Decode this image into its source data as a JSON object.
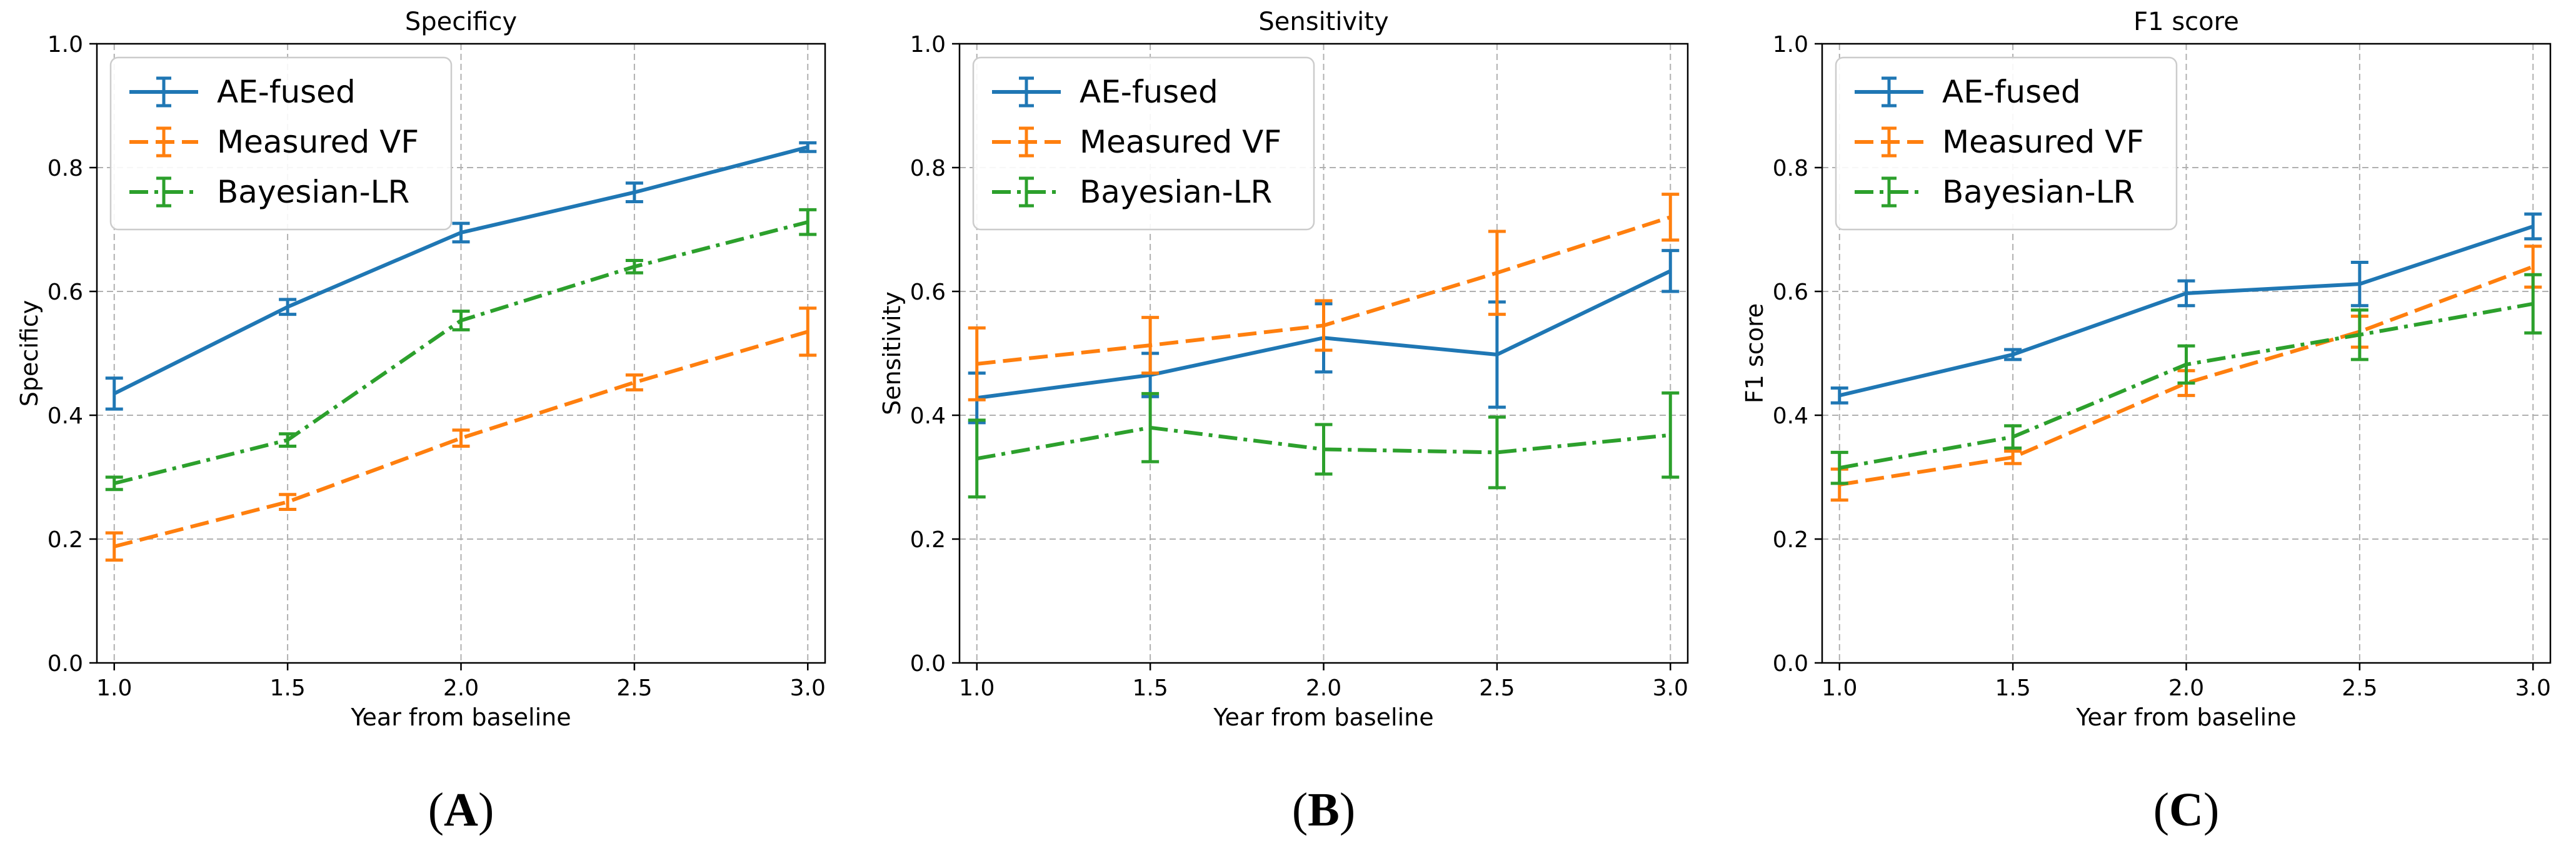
{
  "colors": {
    "ae_fused": "#1f77b4",
    "measured_vf": "#ff7f0e",
    "bayesian_lr": "#2ca02c",
    "grid": "#b0b0b0"
  },
  "chart_data": [
    {
      "type": "line",
      "panel_label": "A",
      "title": "Specificy",
      "xlabel": "Year from baseline",
      "ylabel": "Specificy",
      "x": [
        1.0,
        1.5,
        2.0,
        2.5,
        3.0
      ],
      "xticks": [
        "1.0",
        "1.5",
        "2.0",
        "2.5",
        "3.0"
      ],
      "yticks": [
        "0.0",
        "0.2",
        "0.4",
        "0.6",
        "0.8",
        "1.0"
      ],
      "xlim": [
        0.95,
        3.05
      ],
      "ylim": [
        0.0,
        1.0
      ],
      "grid": true,
      "legend_position": "top-left",
      "series": [
        {
          "name": "AE-fused",
          "style": "solid",
          "color": "#1f77b4",
          "values": [
            0.435,
            0.575,
            0.695,
            0.76,
            0.833
          ],
          "errors": [
            0.025,
            0.012,
            0.015,
            0.015,
            0.007
          ]
        },
        {
          "name": "Measured VF",
          "style": "dashed",
          "color": "#ff7f0e",
          "values": [
            0.188,
            0.26,
            0.363,
            0.453,
            0.535
          ],
          "errors": [
            0.022,
            0.012,
            0.013,
            0.012,
            0.038
          ]
        },
        {
          "name": "Bayesian-LR",
          "style": "dashdot",
          "color": "#2ca02c",
          "values": [
            0.29,
            0.36,
            0.553,
            0.64,
            0.712
          ],
          "errors": [
            0.01,
            0.01,
            0.015,
            0.01,
            0.02
          ]
        }
      ]
    },
    {
      "type": "line",
      "panel_label": "B",
      "title": "Sensitivity",
      "xlabel": "Year from baseline",
      "ylabel": "Sensitivity",
      "x": [
        1.0,
        1.5,
        2.0,
        2.5,
        3.0
      ],
      "xticks": [
        "1.0",
        "1.5",
        "2.0",
        "2.5",
        "3.0"
      ],
      "yticks": [
        "0.0",
        "0.2",
        "0.4",
        "0.6",
        "0.8",
        "1.0"
      ],
      "xlim": [
        0.95,
        3.05
      ],
      "ylim": [
        0.0,
        1.0
      ],
      "grid": true,
      "legend_position": "top-left",
      "series": [
        {
          "name": "AE-fused",
          "style": "solid",
          "color": "#1f77b4",
          "values": [
            0.428,
            0.465,
            0.525,
            0.498,
            0.633
          ],
          "errors": [
            0.04,
            0.035,
            0.055,
            0.085,
            0.033
          ]
        },
        {
          "name": "Measured VF",
          "style": "dashed",
          "color": "#ff7f0e",
          "values": [
            0.483,
            0.513,
            0.545,
            0.63,
            0.72
          ],
          "errors": [
            0.058,
            0.045,
            0.04,
            0.067,
            0.037
          ]
        },
        {
          "name": "Bayesian-LR",
          "style": "dashdot",
          "color": "#2ca02c",
          "values": [
            0.33,
            0.38,
            0.345,
            0.34,
            0.368
          ],
          "errors": [
            0.062,
            0.055,
            0.04,
            0.057,
            0.068
          ]
        }
      ]
    },
    {
      "type": "line",
      "panel_label": "C",
      "title": "F1 score",
      "xlabel": "Year from baseline",
      "ylabel": "F1 score",
      "x": [
        1.0,
        1.5,
        2.0,
        2.5,
        3.0
      ],
      "xticks": [
        "1.0",
        "1.5",
        "2.0",
        "2.5",
        "3.0"
      ],
      "yticks": [
        "0.0",
        "0.2",
        "0.4",
        "0.6",
        "0.8",
        "1.0"
      ],
      "xlim": [
        0.95,
        3.05
      ],
      "ylim": [
        0.0,
        1.0
      ],
      "grid": true,
      "legend_position": "top-left",
      "series": [
        {
          "name": "AE-fused",
          "style": "solid",
          "color": "#1f77b4",
          "values": [
            0.432,
            0.498,
            0.597,
            0.612,
            0.705
          ],
          "errors": [
            0.012,
            0.008,
            0.02,
            0.035,
            0.02
          ]
        },
        {
          "name": "Measured VF",
          "style": "dashed",
          "color": "#ff7f0e",
          "values": [
            0.288,
            0.332,
            0.452,
            0.535,
            0.64
          ],
          "errors": [
            0.025,
            0.01,
            0.02,
            0.025,
            0.033
          ]
        },
        {
          "name": "Bayesian-LR",
          "style": "dashdot",
          "color": "#2ca02c",
          "values": [
            0.315,
            0.365,
            0.482,
            0.53,
            0.58
          ],
          "errors": [
            0.025,
            0.018,
            0.03,
            0.04,
            0.047
          ]
        }
      ]
    }
  ]
}
